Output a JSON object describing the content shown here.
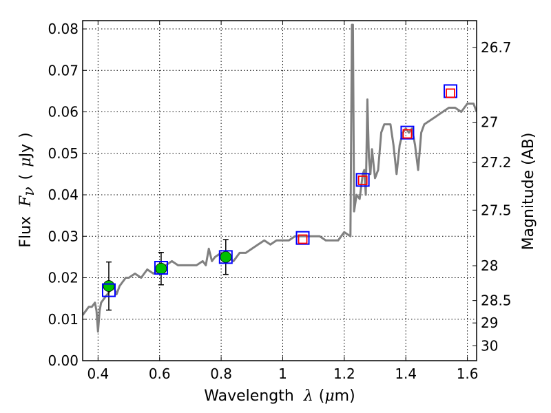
{
  "chart_data": {
    "type": "scatter",
    "xlabel": {
      "prefix": "Wavelength",
      "symbol": "λ",
      "unit_open": "(",
      "unit_mu": "μ",
      "unit_rest": "m)"
    },
    "ylabel": {
      "prefix": "Flux",
      "symbol": "F",
      "subscript": "ν",
      "unit_open": "(",
      "unit_mu": "μ",
      "unit_rest": "Jy",
      "unit_close": ")"
    },
    "y2label": "Magnitude (AB)",
    "xlim": [
      0.35,
      1.63
    ],
    "ylim": [
      0.0,
      0.082
    ],
    "x_ticks": [
      0.4,
      0.6,
      0.8,
      1.0,
      1.2,
      1.4,
      1.6
    ],
    "x_tick_labels": [
      "0.4",
      "0.6",
      "0.8",
      "1",
      "1.2",
      "1.4",
      "1.6"
    ],
    "y_ticks": [
      0.0,
      0.01,
      0.02,
      0.03,
      0.04,
      0.05,
      0.06,
      0.07,
      0.08
    ],
    "y_tick_labels": [
      "0.00",
      "0.01",
      "0.02",
      "0.03",
      "0.04",
      "0.05",
      "0.06",
      "0.07",
      "0.08"
    ],
    "y2_ticks": [
      {
        "flux": 0.0755,
        "label": "26.7"
      },
      {
        "flux": 0.0575,
        "label": "27"
      },
      {
        "flux": 0.0478,
        "label": "27.2"
      },
      {
        "flux": 0.0363,
        "label": "27.5"
      },
      {
        "flux": 0.0229,
        "label": "28"
      },
      {
        "flux": 0.0145,
        "label": "28.5"
      },
      {
        "flux": 0.0091,
        "label": "29"
      },
      {
        "flux": 0.0036,
        "label": "30"
      }
    ],
    "grid": true,
    "series": [
      {
        "kind": "line",
        "color": "#808080",
        "x": [
          0.35,
          0.36,
          0.37,
          0.38,
          0.39,
          0.395,
          0.4,
          0.405,
          0.41,
          0.42,
          0.43,
          0.44,
          0.45,
          0.46,
          0.47,
          0.48,
          0.49,
          0.5,
          0.52,
          0.54,
          0.56,
          0.58,
          0.6,
          0.62,
          0.64,
          0.66,
          0.68,
          0.7,
          0.72,
          0.74,
          0.75,
          0.76,
          0.77,
          0.78,
          0.8,
          0.82,
          0.84,
          0.86,
          0.88,
          0.9,
          0.92,
          0.94,
          0.96,
          0.98,
          1.0,
          1.02,
          1.04,
          1.06,
          1.08,
          1.1,
          1.12,
          1.14,
          1.16,
          1.18,
          1.2,
          1.22,
          1.225,
          1.228,
          1.232,
          1.236,
          1.24,
          1.25,
          1.26,
          1.265,
          1.27,
          1.275,
          1.28,
          1.285,
          1.29,
          1.3,
          1.31,
          1.32,
          1.33,
          1.34,
          1.35,
          1.36,
          1.37,
          1.38,
          1.39,
          1.4,
          1.41,
          1.42,
          1.43,
          1.44,
          1.45,
          1.46,
          1.48,
          1.5,
          1.52,
          1.54,
          1.56,
          1.58,
          1.6,
          1.62,
          1.63
        ],
        "y": [
          0.011,
          0.012,
          0.013,
          0.013,
          0.014,
          0.012,
          0.007,
          0.012,
          0.014,
          0.015,
          0.016,
          0.017,
          0.018,
          0.016,
          0.018,
          0.019,
          0.02,
          0.02,
          0.021,
          0.02,
          0.022,
          0.021,
          0.022,
          0.023,
          0.024,
          0.023,
          0.023,
          0.023,
          0.023,
          0.024,
          0.023,
          0.027,
          0.024,
          0.025,
          0.026,
          0.025,
          0.024,
          0.026,
          0.026,
          0.027,
          0.028,
          0.029,
          0.028,
          0.029,
          0.029,
          0.029,
          0.03,
          0.03,
          0.03,
          0.03,
          0.03,
          0.029,
          0.029,
          0.029,
          0.031,
          0.03,
          0.081,
          0.081,
          0.036,
          0.038,
          0.04,
          0.039,
          0.045,
          0.046,
          0.04,
          0.063,
          0.049,
          0.045,
          0.051,
          0.044,
          0.046,
          0.055,
          0.057,
          0.057,
          0.057,
          0.052,
          0.045,
          0.052,
          0.055,
          0.056,
          0.055,
          0.056,
          0.052,
          0.046,
          0.055,
          0.057,
          0.058,
          0.059,
          0.06,
          0.061,
          0.061,
          0.06,
          0.062,
          0.062,
          0.06
        ]
      },
      {
        "kind": "points",
        "marker": "circle",
        "color": "#00c000",
        "x": [
          0.435,
          0.605,
          0.815
        ],
        "y": [
          0.018,
          0.0222,
          0.025
        ],
        "yerr": [
          0.0058,
          0.0039,
          0.0042
        ]
      },
      {
        "kind": "points",
        "marker": "open-square",
        "color": "#0000ff",
        "x": [
          0.435,
          0.605,
          0.815,
          1.065,
          1.26,
          1.405,
          1.545
        ],
        "y": [
          0.017,
          0.0224,
          0.025,
          0.0296,
          0.0436,
          0.055,
          0.065
        ]
      },
      {
        "kind": "points",
        "marker": "open-square-small",
        "color": "#ff0000",
        "x": [
          1.065,
          1.26,
          1.405,
          1.545
        ],
        "y": [
          0.0293,
          0.0435,
          0.0547,
          0.0645
        ]
      }
    ]
  }
}
